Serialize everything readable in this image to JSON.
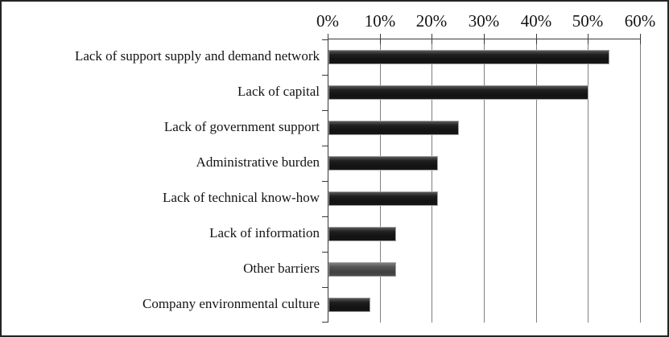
{
  "chart_data": {
    "type": "bar",
    "orientation": "horizontal",
    "title": "",
    "categories": [
      "Lack of support supply and demand network",
      "Lack of capital",
      "Lack of government support",
      "Administrative burden",
      "Lack of technical know-how",
      "Lack of information",
      "Other barriers",
      "Company environmental culture"
    ],
    "values": [
      54,
      50,
      25,
      21,
      21,
      13,
      13,
      8
    ],
    "value_unit": "percent",
    "x_tick_labels": [
      "0%",
      "10%",
      "20%",
      "30%",
      "40%",
      "50%",
      "60%"
    ],
    "x_tick_values": [
      0,
      10,
      20,
      30,
      40,
      50,
      60
    ],
    "xlim": [
      0,
      60
    ],
    "grid": true,
    "axis_position": "top",
    "legend": false,
    "bar_colors": [
      "#171717",
      "#171717",
      "#171717",
      "#171717",
      "#171717",
      "#171717",
      "#4f4f4f",
      "#171717"
    ],
    "colors": {
      "background": "#ffffff",
      "outer_border": "#242424",
      "gridline": "#808080",
      "axis_line": "#3a3a3a",
      "bar_border": "#a3a3a3",
      "bar_default": "#171717",
      "bar_other": "#4f4f4f",
      "text": "#141414"
    }
  }
}
